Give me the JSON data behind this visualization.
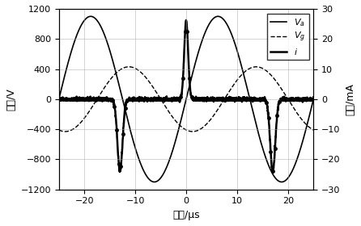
{
  "title": "",
  "xlabel": "时间/μs",
  "ylabel_left": "电压/V",
  "ylabel_right": "电流/mA",
  "xlim": [
    -25,
    25
  ],
  "ylim_left": [
    -1200,
    1200
  ],
  "ylim_right": [
    -30,
    30
  ],
  "xticks": [
    -20,
    -10,
    0,
    10,
    20
  ],
  "yticks_left": [
    -1200,
    -800,
    -400,
    0,
    400,
    800,
    1200
  ],
  "yticks_right": [
    -30,
    -20,
    -10,
    0,
    10,
    20,
    30
  ],
  "legend_labels": [
    "$V_a$",
    "$V_g$",
    "$i$"
  ],
  "Va_color": "black",
  "Vg_color": "black",
  "i_color": "black",
  "background_color": "white",
  "grid_color": "#aaaaaa"
}
